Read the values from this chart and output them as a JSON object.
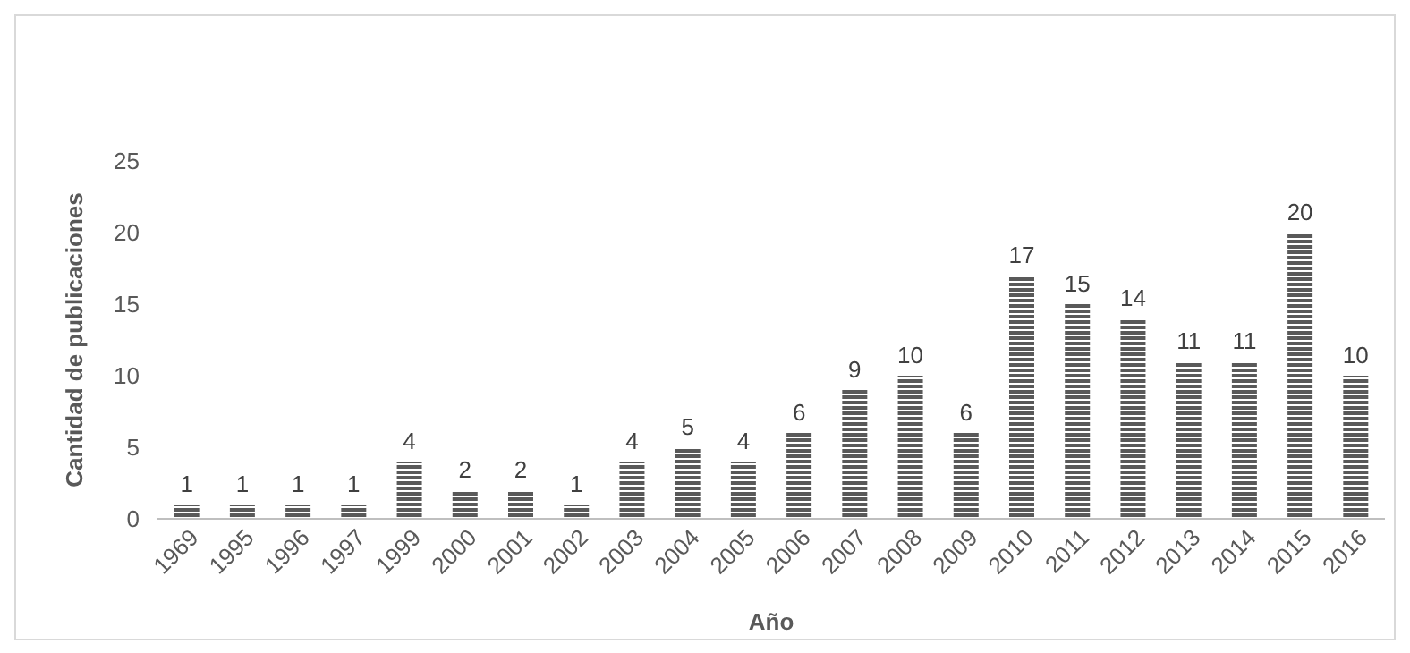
{
  "chart_data": {
    "type": "bar",
    "xlabel": "Año",
    "ylabel": "Cantidad de publicaciones",
    "categories": [
      "1969",
      "1995",
      "1996",
      "1997",
      "1999",
      "2000",
      "2001",
      "2002",
      "2003",
      "2004",
      "2005",
      "2006",
      "2007",
      "2008",
      "2009",
      "2010",
      "2011",
      "2012",
      "2013",
      "2014",
      "2015",
      "2016"
    ],
    "values": [
      1,
      1,
      1,
      1,
      4,
      2,
      2,
      1,
      4,
      5,
      4,
      6,
      9,
      10,
      6,
      17,
      15,
      14,
      11,
      11,
      20,
      10
    ],
    "color": "#595959",
    "ylim": [
      0,
      25
    ],
    "yticks": [
      0,
      5,
      10,
      15,
      20,
      25
    ],
    "grid": false,
    "data_labels": true
  }
}
